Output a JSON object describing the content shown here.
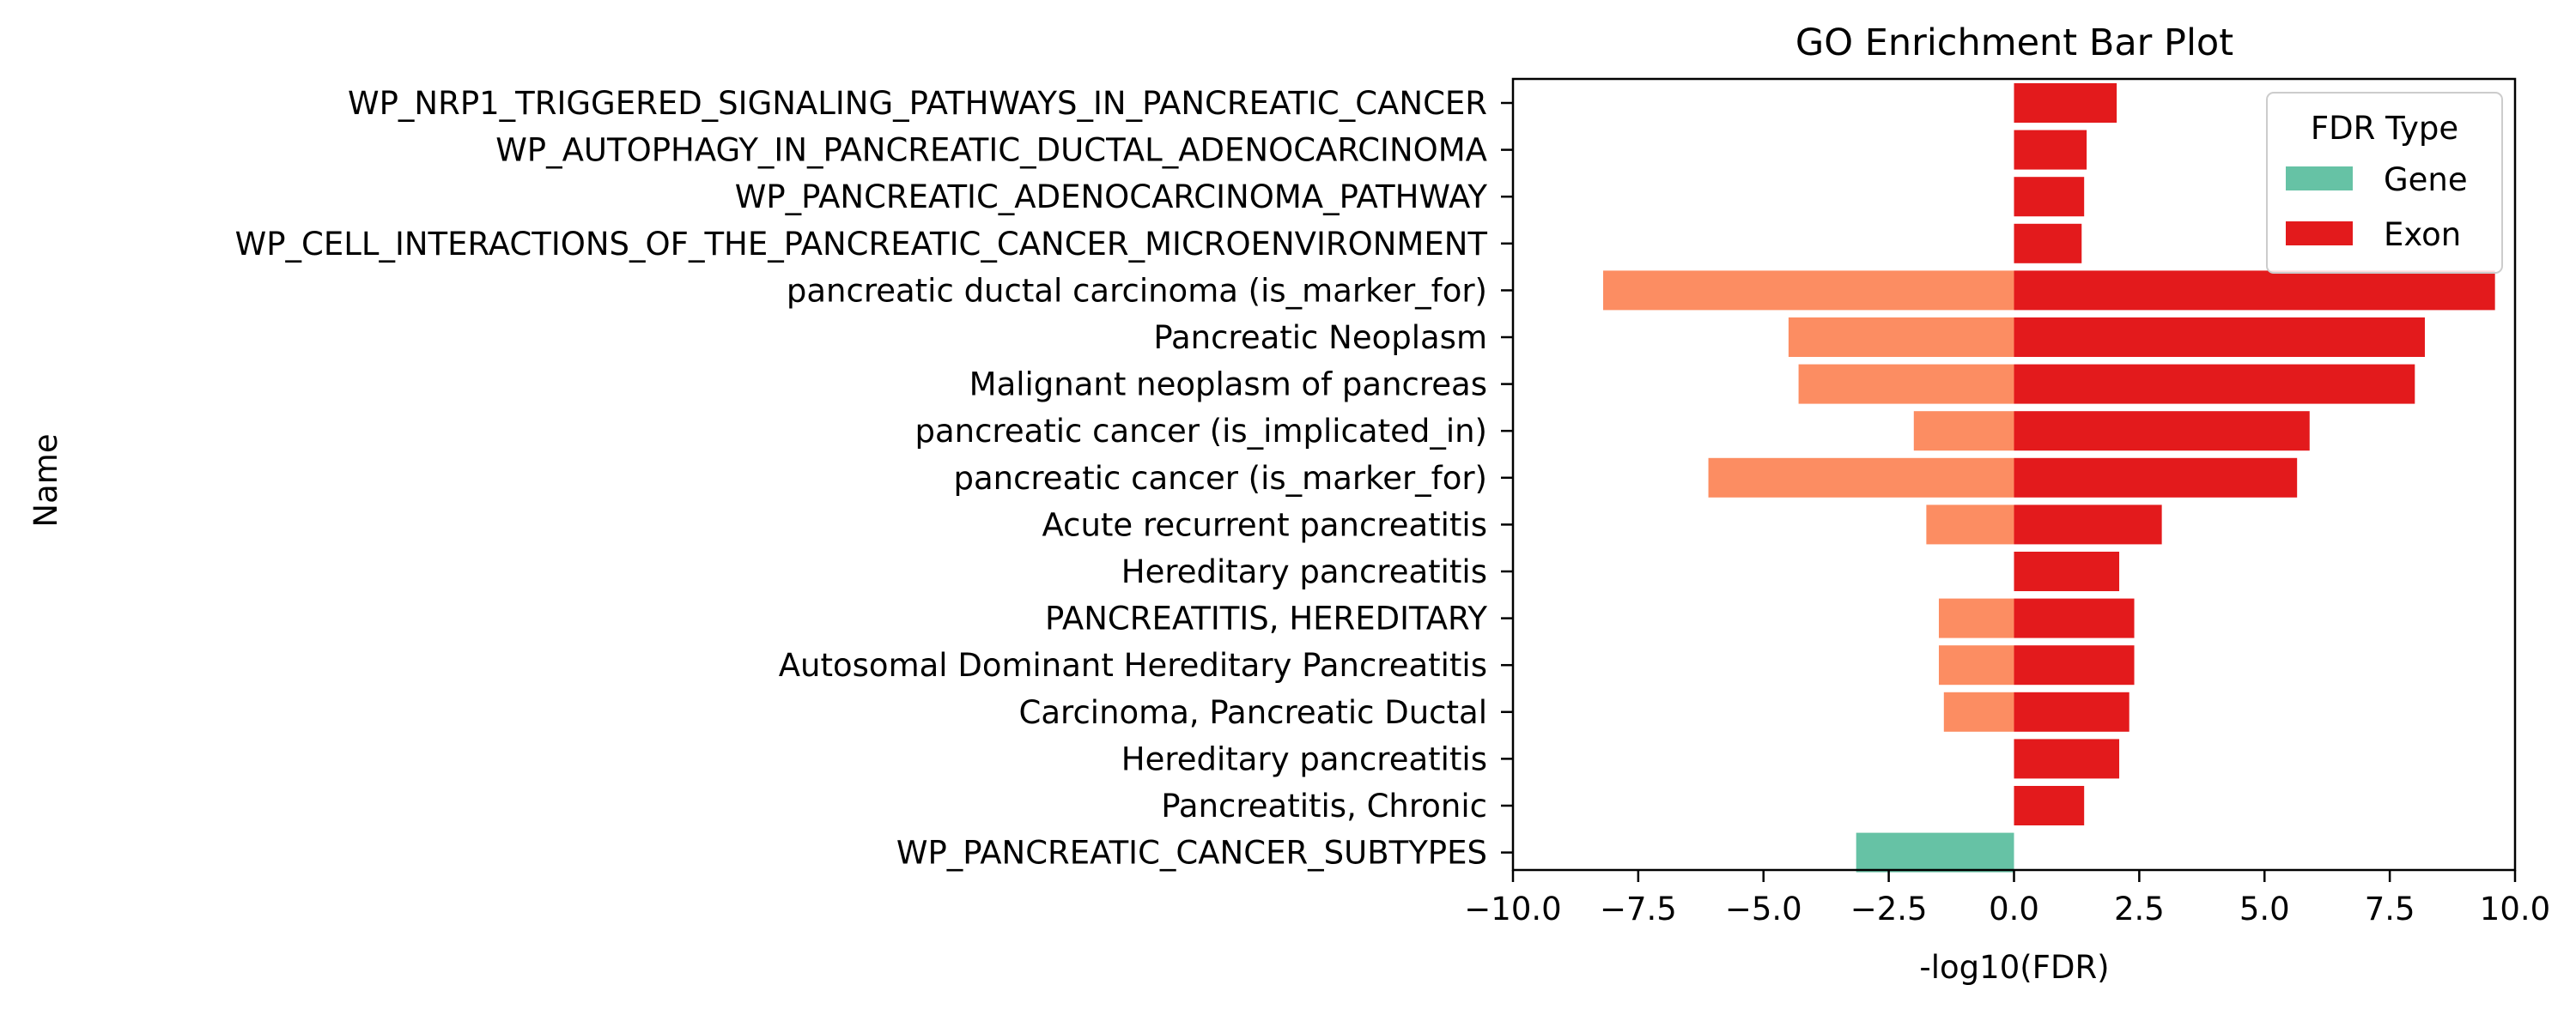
{
  "chart_data": {
    "type": "bar",
    "orientation": "horizontal",
    "title": "GO Enrichment Bar Plot",
    "xlabel": "-log10(FDR)",
    "ylabel": "Name",
    "xlim": [
      -10.0,
      10.0
    ],
    "xticks": [
      -10,
      -7.5,
      -5,
      -2.5,
      0,
      2.5,
      5,
      7.5,
      10
    ],
    "xtick_labels": [
      "−10.0",
      "−7.5",
      "−5.0",
      "−2.5",
      "0.0",
      "2.5",
      "5.0",
      "7.5",
      "10.0"
    ],
    "grid": false,
    "legend_position": "top-right",
    "legend": {
      "title": "FDR Type",
      "entries": [
        {
          "label": "Gene",
          "color": "#66c2a5"
        },
        {
          "label": "Exon",
          "color": "#e31a1c"
        }
      ]
    },
    "categories": [
      "WP_NRP1_TRIGGERED_SIGNALING_PATHWAYS_IN_PANCREATIC_CANCER",
      "WP_AUTOPHAGY_IN_PANCREATIC_DUCTAL_ADENOCARCINOMA",
      "WP_PANCREATIC_ADENOCARCINOMA_PATHWAY",
      "WP_CELL_INTERACTIONS_OF_THE_PANCREATIC_CANCER_MICROENVIRONMENT",
      "pancreatic ductal carcinoma (is_marker_for)",
      "Pancreatic Neoplasm",
      "Malignant neoplasm of pancreas",
      "pancreatic cancer (is_implicated_in)",
      "pancreatic cancer (is_marker_for)",
      "Acute recurrent pancreatitis",
      "Hereditary pancreatitis",
      "PANCREATITIS, HEREDITARY",
      "Autosomal Dominant Hereditary Pancreatitis",
      "Carcinoma, Pancreatic Ductal",
      "Hereditary pancreatitis",
      "Pancreatitis, Chronic",
      "WP_PANCREATIC_CANCER_SUBTYPES"
    ],
    "series": [
      {
        "name": "Gene",
        "values": [
          0,
          0,
          0,
          0,
          -8.2,
          -4.5,
          -4.3,
          -2.0,
          -6.1,
          -1.75,
          0,
          -1.5,
          -1.5,
          -1.4,
          0,
          0,
          -3.15
        ]
      },
      {
        "name": "Exon",
        "values": [
          2.05,
          1.45,
          1.4,
          1.35,
          9.6,
          8.2,
          8.0,
          5.9,
          5.65,
          2.95,
          2.1,
          2.4,
          2.4,
          2.3,
          2.1,
          1.4,
          0
        ]
      }
    ],
    "bar_colors": {
      "gene_primary": "#66c2a5",
      "gene_secondary": "#fc8d62",
      "exon": "#e31a1c"
    }
  }
}
